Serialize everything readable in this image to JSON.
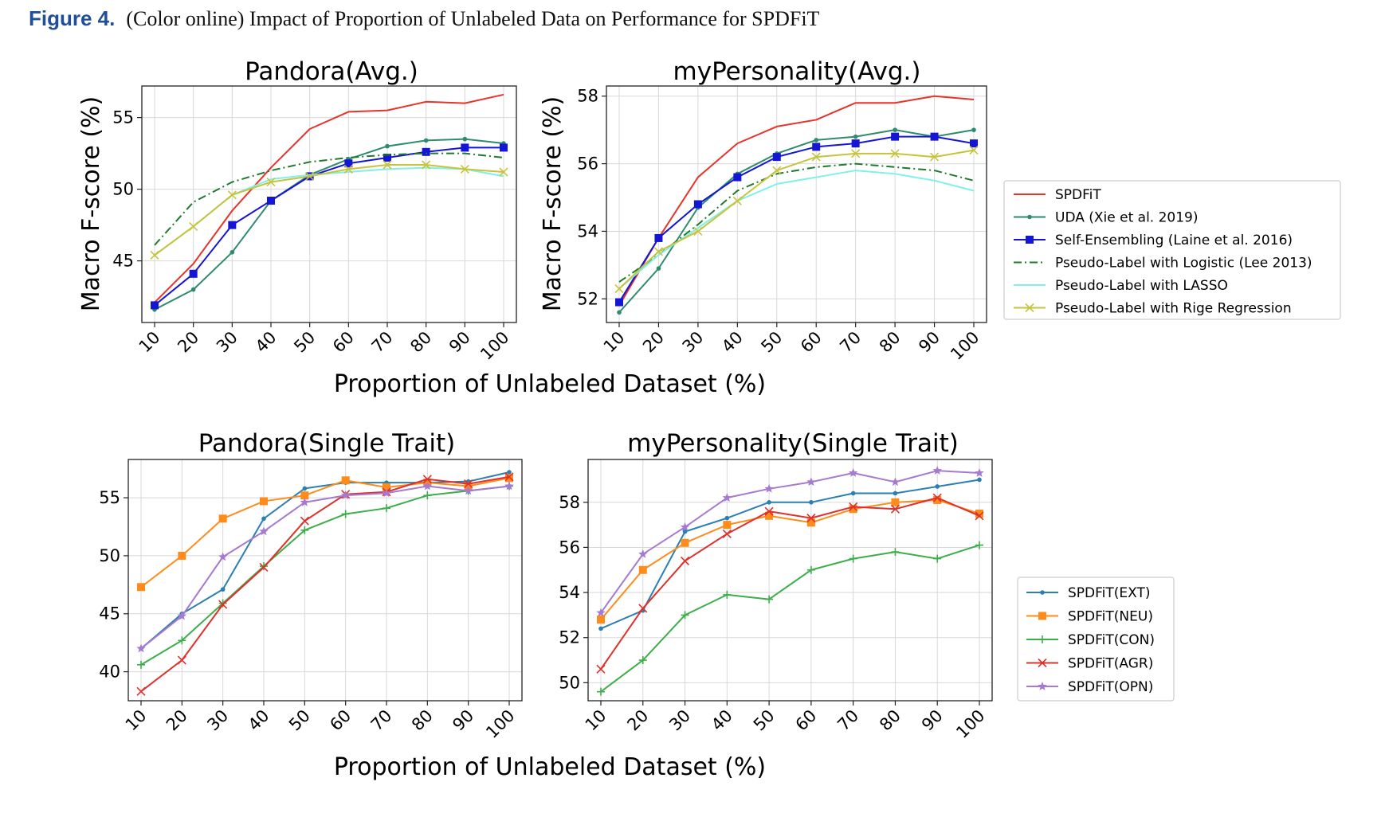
{
  "figure": {
    "label": "Figure 4.",
    "caption": "(Color online) Impact of Proportion of Unlabeled Data on Performance for SPDFiT",
    "xlabel_top": "Proportion of Unlabeled Dataset (%)",
    "xlabel_bottom": "Proportion of Unlabeled Dataset (%)"
  },
  "legends": {
    "top": [
      "SPDFiT",
      "UDA (Xie et al. 2019)",
      "Self-Ensembling (Laine et al. 2016)",
      "Pseudo-Label with Logistic (Lee 2013)",
      "Pseudo-Label with LASSO",
      "Pseudo-Label with Rige Regression"
    ],
    "bottom": [
      "SPDFiT(EXT)",
      "SPDFiT(NEU)",
      "SPDFiT(CON)",
      "SPDFiT(AGR)",
      "SPDFiT(OPN)"
    ]
  },
  "colors": {
    "spdfit": "#e8332a",
    "uda": "#2e8b6e",
    "selfens": "#1515d6",
    "pl_logistic": "#1e7a2e",
    "pl_lasso": "#7ff0ea",
    "pl_ridge": "#c6c43c",
    "ext": "#2a7fb3",
    "neu": "#ff8c1a",
    "con": "#3cae4a",
    "agr": "#e0302b",
    "opn": "#a57ad0"
  },
  "chart_data": [
    {
      "type": "line",
      "title": "Pandora(Avg.)",
      "xlabel": "Proportion of Unlabeled Dataset (%)",
      "ylabel": "Macro F-score (%)",
      "x": [
        10,
        20,
        30,
        40,
        50,
        60,
        70,
        80,
        90,
        100
      ],
      "ylim": [
        40.7,
        57.2
      ],
      "yticks": [
        45,
        50,
        55
      ],
      "grid": true,
      "legend": "right",
      "series": [
        {
          "name": "SPDFiT",
          "color": "#e8332a",
          "marker": "none",
          "dash": "solid",
          "values": [
            42.1,
            44.8,
            48.5,
            51.5,
            54.2,
            55.4,
            55.5,
            56.1,
            56.0,
            56.6
          ]
        },
        {
          "name": "UDA (Xie et al. 2019)",
          "color": "#2e8b6e",
          "marker": "dot",
          "dash": "solid",
          "values": [
            41.6,
            43.0,
            45.6,
            49.2,
            51.0,
            52.1,
            53.0,
            53.4,
            53.5,
            53.2
          ]
        },
        {
          "name": "Self-Ensembling (Laine et al. 2016)",
          "color": "#1515d6",
          "marker": "square",
          "dash": "solid",
          "values": [
            41.9,
            44.1,
            47.5,
            49.2,
            50.9,
            51.8,
            52.2,
            52.6,
            52.9,
            52.9
          ]
        },
        {
          "name": "Pseudo-Label with Logistic (Lee 2013)",
          "color": "#1e7a2e",
          "marker": "none",
          "dash": "dashdot",
          "values": [
            46.1,
            49.1,
            50.5,
            51.3,
            51.9,
            52.2,
            52.4,
            52.5,
            52.5,
            52.2
          ]
        },
        {
          "name": "Pseudo-Label with LASSO",
          "color": "#7ff0ea",
          "marker": "none",
          "dash": "solid",
          "values": [
            45.4,
            47.4,
            49.6,
            50.7,
            51.0,
            51.2,
            51.4,
            51.5,
            51.4,
            50.9
          ]
        },
        {
          "name": "Pseudo-Label with Rige Regression",
          "color": "#c6c43c",
          "marker": "x",
          "dash": "solid",
          "values": [
            45.4,
            47.4,
            49.6,
            50.5,
            50.9,
            51.4,
            51.7,
            51.7,
            51.4,
            51.2
          ]
        }
      ]
    },
    {
      "type": "line",
      "title": "myPersonality(Avg.)",
      "xlabel": "Proportion of Unlabeled Dataset (%)",
      "ylabel": "Macro F-score (%)",
      "x": [
        10,
        20,
        30,
        40,
        50,
        60,
        70,
        80,
        90,
        100
      ],
      "ylim": [
        51.3,
        58.3
      ],
      "yticks": [
        52,
        54,
        56,
        58
      ],
      "grid": true,
      "legend": "right",
      "series": [
        {
          "name": "SPDFiT",
          "color": "#e8332a",
          "marker": "none",
          "dash": "solid",
          "values": [
            51.8,
            53.8,
            55.6,
            56.6,
            57.1,
            57.3,
            57.8,
            57.8,
            58.0,
            57.9
          ]
        },
        {
          "name": "UDA (Xie et al. 2019)",
          "color": "#2e8b6e",
          "marker": "dot",
          "dash": "solid",
          "values": [
            51.6,
            52.9,
            54.7,
            55.7,
            56.3,
            56.7,
            56.8,
            57.0,
            56.8,
            57.0
          ]
        },
        {
          "name": "Self-Ensembling (Laine et al. 2016)",
          "color": "#1515d6",
          "marker": "square",
          "dash": "solid",
          "values": [
            51.9,
            53.8,
            54.8,
            55.6,
            56.2,
            56.5,
            56.6,
            56.8,
            56.8,
            56.6
          ]
        },
        {
          "name": "Pseudo-Label with Logistic (Lee 2013)",
          "color": "#1e7a2e",
          "marker": "none",
          "dash": "dashdot",
          "values": [
            52.5,
            53.3,
            54.2,
            55.2,
            55.7,
            55.9,
            56.0,
            55.9,
            55.8,
            55.5
          ]
        },
        {
          "name": "Pseudo-Label with LASSO",
          "color": "#7ff0ea",
          "marker": "none",
          "dash": "solid",
          "values": [
            52.3,
            53.3,
            54.1,
            54.9,
            55.4,
            55.6,
            55.8,
            55.7,
            55.5,
            55.2
          ]
        },
        {
          "name": "Pseudo-Label with Rige Regression",
          "color": "#c6c43c",
          "marker": "x",
          "dash": "solid",
          "values": [
            52.3,
            53.4,
            54.0,
            54.9,
            55.8,
            56.2,
            56.3,
            56.3,
            56.2,
            56.4
          ]
        }
      ]
    },
    {
      "type": "line",
      "title": "Pandora(Single Trait)",
      "xlabel": "Proportion of Unlabeled Dataset (%)",
      "ylabel": "",
      "x": [
        10,
        20,
        30,
        40,
        50,
        60,
        70,
        80,
        90,
        100
      ],
      "ylim": [
        37.5,
        58.3
      ],
      "yticks": [
        40,
        45,
        50,
        55
      ],
      "grid": true,
      "legend": "right",
      "series": [
        {
          "name": "SPDFiT(EXT)",
          "color": "#2a7fb3",
          "marker": "dot",
          "values": [
            42.0,
            45.0,
            47.1,
            53.2,
            55.8,
            56.3,
            56.3,
            56.3,
            56.4,
            57.2
          ]
        },
        {
          "name": "SPDFiT(NEU)",
          "color": "#ff8c1a",
          "marker": "square",
          "values": [
            47.3,
            50.0,
            53.2,
            54.7,
            55.2,
            56.5,
            55.9,
            56.3,
            56.0,
            56.7
          ]
        },
        {
          "name": "SPDFiT(CON)",
          "color": "#3cae4a",
          "marker": "plus",
          "values": [
            40.6,
            42.7,
            45.9,
            49.1,
            52.2,
            53.6,
            54.1,
            55.2,
            55.6,
            56.0
          ]
        },
        {
          "name": "SPDFiT(AGR)",
          "color": "#e0302b",
          "marker": "x",
          "values": [
            38.3,
            41.0,
            45.8,
            49.0,
            53.0,
            55.3,
            55.5,
            56.6,
            56.2,
            56.8
          ]
        },
        {
          "name": "SPDFiT(OPN)",
          "color": "#a57ad0",
          "marker": "star",
          "values": [
            42.0,
            44.8,
            49.9,
            52.1,
            54.6,
            55.2,
            55.4,
            56.0,
            55.6,
            56.0
          ]
        }
      ]
    },
    {
      "type": "line",
      "title": "myPersonality(Single Trait)",
      "xlabel": "Proportion of Unlabeled Dataset (%)",
      "ylabel": "",
      "x": [
        10,
        20,
        30,
        40,
        50,
        60,
        70,
        80,
        90,
        100
      ],
      "ylim": [
        49.2,
        59.9
      ],
      "yticks": [
        50,
        52,
        54,
        56,
        58
      ],
      "grid": true,
      "legend": "right",
      "series": [
        {
          "name": "SPDFiT(EXT)",
          "color": "#2a7fb3",
          "marker": "dot",
          "values": [
            52.4,
            53.2,
            56.7,
            57.3,
            58.0,
            58.0,
            58.4,
            58.4,
            58.7,
            59.0
          ]
        },
        {
          "name": "SPDFiT(NEU)",
          "color": "#ff8c1a",
          "marker": "square",
          "values": [
            52.8,
            55.0,
            56.2,
            57.0,
            57.4,
            57.1,
            57.7,
            58.0,
            58.1,
            57.5
          ]
        },
        {
          "name": "SPDFiT(CON)",
          "color": "#3cae4a",
          "marker": "plus",
          "values": [
            49.6,
            51.0,
            53.0,
            53.9,
            53.7,
            55.0,
            55.5,
            55.8,
            55.5,
            56.1
          ]
        },
        {
          "name": "SPDFiT(AGR)",
          "color": "#e0302b",
          "marker": "x",
          "values": [
            50.6,
            53.3,
            55.4,
            56.6,
            57.6,
            57.3,
            57.8,
            57.7,
            58.2,
            57.4
          ]
        },
        {
          "name": "SPDFiT(OPN)",
          "color": "#a57ad0",
          "marker": "star",
          "values": [
            53.1,
            55.7,
            56.9,
            58.2,
            58.6,
            58.9,
            59.3,
            58.9,
            59.4,
            59.3
          ]
        }
      ]
    }
  ]
}
